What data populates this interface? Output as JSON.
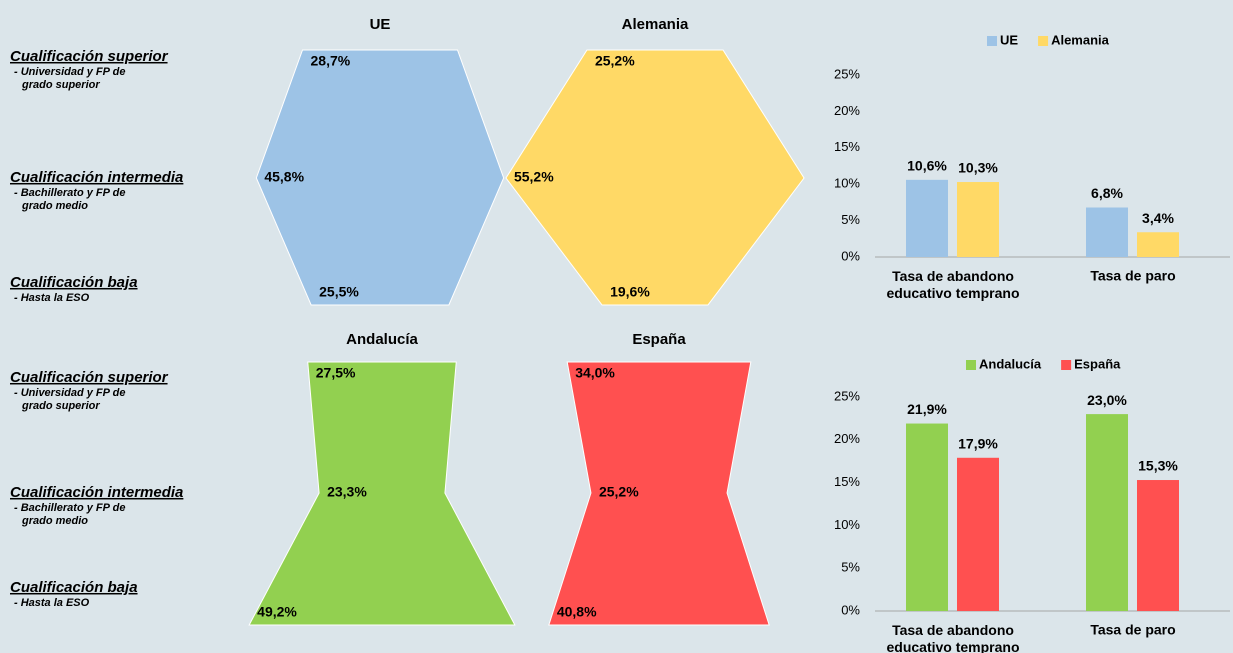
{
  "chart_data": [
    {
      "type": "profile",
      "categories": [
        "Cualificación superior",
        "Cualificación intermedia",
        "Cualificación baja"
      ],
      "category_notes": [
        [
          "- Universidad y FP de",
          "grado superior"
        ],
        [
          "- Bachillerato y FP de",
          "grado medio"
        ],
        [
          "- Hasta la ESO"
        ]
      ],
      "series": [
        {
          "name": "UE",
          "color": "#9dc3e6",
          "values": [
            28.7,
            45.8,
            25.5
          ],
          "value_labels": [
            "28,7%",
            "45,8%",
            "25,5%"
          ]
        },
        {
          "name": "Alemania",
          "color": "#ffd966",
          "values": [
            25.2,
            55.2,
            19.6
          ],
          "value_labels": [
            "25,2%",
            "55,2%",
            "19,6%"
          ]
        }
      ]
    },
    {
      "type": "bar",
      "categories": [
        "Tasa de abandono educativo temprano",
        "Tasa de paro"
      ],
      "series": [
        {
          "name": "UE",
          "color": "#9dc3e6",
          "values": [
            10.6,
            6.8
          ],
          "value_labels": [
            "10,6%",
            "6,8%"
          ]
        },
        {
          "name": "Alemania",
          "color": "#ffd966",
          "values": [
            10.3,
            3.4
          ],
          "value_labels": [
            "10,3%",
            "3,4%"
          ]
        }
      ],
      "ylim": [
        0,
        25
      ],
      "yticks": [
        {
          "value": 0,
          "label": "0%"
        },
        {
          "value": 5,
          "label": "5%"
        },
        {
          "value": 10,
          "label": "10%"
        },
        {
          "value": 15,
          "label": "15%"
        },
        {
          "value": 20,
          "label": "20%"
        },
        {
          "value": 25,
          "label": "25%"
        }
      ],
      "grid": false,
      "legend": "top"
    },
    {
      "type": "profile",
      "categories": [
        "Cualificación superior",
        "Cualificación intermedia",
        "Cualificación baja"
      ],
      "category_notes": [
        [
          "- Universidad y FP de",
          "grado superior"
        ],
        [
          "- Bachillerato y FP de",
          "grado medio"
        ],
        [
          "- Hasta la ESO"
        ]
      ],
      "series": [
        {
          "name": "Andalucía",
          "color": "#92d050",
          "values": [
            27.5,
            23.3,
            49.2
          ],
          "value_labels": [
            "27,5%",
            "23,3%",
            "49,2%"
          ]
        },
        {
          "name": "España",
          "color": "#ff5050",
          "values": [
            34.0,
            25.2,
            40.8
          ],
          "value_labels": [
            "34,0%",
            "25,2%",
            "40,8%"
          ]
        }
      ]
    },
    {
      "type": "bar",
      "categories": [
        "Tasa de abandono educativo temprano",
        "Tasa de paro"
      ],
      "series": [
        {
          "name": "Andalucía",
          "color": "#92d050",
          "values": [
            21.9,
            23.0
          ],
          "value_labels": [
            "21,9%",
            "23,0%"
          ]
        },
        {
          "name": "España",
          "color": "#ff5050",
          "values": [
            17.9,
            15.3
          ],
          "value_labels": [
            "17,9%",
            "15,3%"
          ]
        }
      ],
      "ylim": [
        0,
        25
      ],
      "yticks": [
        {
          "value": 0,
          "label": "0%"
        },
        {
          "value": 5,
          "label": "5%"
        },
        {
          "value": 10,
          "label": "10%"
        },
        {
          "value": 15,
          "label": "15%"
        },
        {
          "value": 20,
          "label": "20%"
        },
        {
          "value": 25,
          "label": "25%"
        }
      ],
      "grid": false,
      "legend": "top"
    }
  ]
}
